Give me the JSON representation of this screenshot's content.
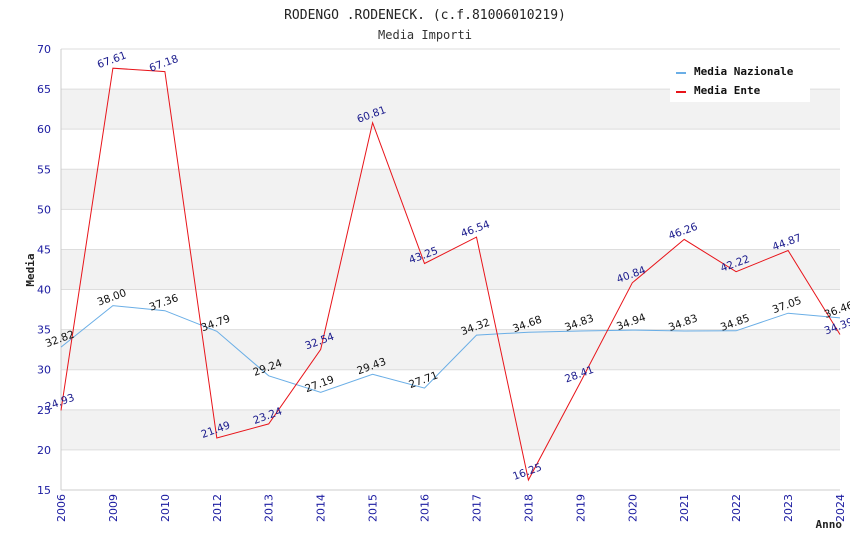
{
  "chart_data": {
    "type": "line",
    "title": "RODENGO .RODENECK. (c.f.81006010219)",
    "subtitle": "Media Importi",
    "xlabel": "Anno",
    "ylabel": "Media",
    "ylim": [
      15,
      70
    ],
    "yticks": [
      15,
      20,
      25,
      30,
      35,
      40,
      45,
      50,
      55,
      60,
      65,
      70
    ],
    "categories": [
      "2006",
      "2009",
      "2010",
      "2012",
      "2013",
      "2014",
      "2015",
      "2016",
      "2017",
      "2018",
      "2019",
      "2020",
      "2021",
      "2022",
      "2023",
      "2024"
    ],
    "series": [
      {
        "name": "Media Nazionale",
        "color": "#6aaee6",
        "values": [
          32.82,
          38.0,
          37.36,
          34.79,
          29.24,
          27.19,
          29.43,
          27.71,
          34.32,
          34.68,
          34.83,
          34.94,
          34.83,
          34.85,
          37.05,
          36.46
        ],
        "labels": [
          "32.82",
          "38.00",
          "37.36",
          "34.79",
          "29.24",
          "27.19",
          "29.43",
          "27.71",
          "34.32",
          "34.68",
          "34.83",
          "34.94",
          "34.83",
          "34.85",
          "37.05",
          "36.46"
        ]
      },
      {
        "name": "Media Ente",
        "color": "#e8141a",
        "values": [
          24.93,
          67.61,
          67.18,
          21.49,
          23.24,
          32.54,
          60.81,
          43.25,
          46.54,
          16.25,
          28.41,
          40.84,
          46.26,
          42.22,
          44.87,
          34.39
        ],
        "labels": [
          "24.93",
          "67.61",
          "67.18",
          "21.49",
          "23.24",
          "32.54",
          "60.81",
          "43.25",
          "46.54",
          "16.25",
          "28.41",
          "40.84",
          "46.26",
          "42.22",
          "44.87",
          "34.39"
        ]
      }
    ],
    "legend": "top-right",
    "grid": true
  }
}
